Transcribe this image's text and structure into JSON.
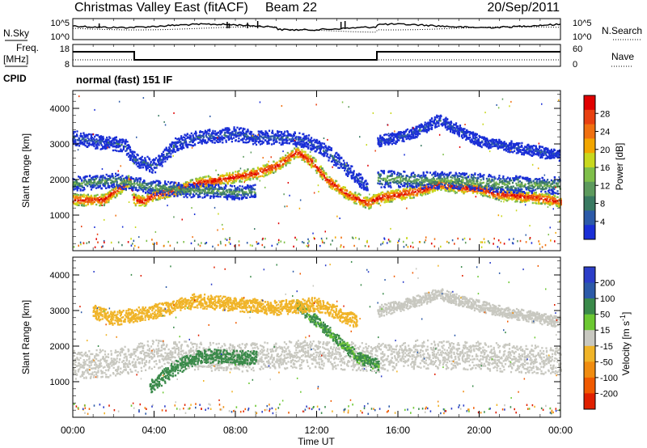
{
  "header": {
    "title": "Christmas Valley East (fitACF)",
    "beam": "Beam 22",
    "date": "20/Sep/2011"
  },
  "noise_panel": {
    "left_label": "N.Sky",
    "right_label": "N.Search",
    "left_ticks": [
      "10^5",
      "10^0"
    ],
    "right_ticks": [
      "10^5",
      "10^0"
    ]
  },
  "freq_panel": {
    "left_label_1": "Freq.",
    "left_label_2": "[MHz]",
    "right_label": "Nave",
    "left_ticks": [
      "18",
      "8"
    ],
    "right_ticks": [
      "60",
      "0"
    ]
  },
  "cpid": {
    "label": "CPID",
    "text": "normal (fast) 151 IF"
  },
  "colors": {
    "power": [
      "#1a2fd6",
      "#2c5aa8",
      "#3a7a62",
      "#5d9a5d",
      "#7fbf4a",
      "#c8d81e",
      "#f2a600",
      "#f07010",
      "#e84010",
      "#e00000"
    ],
    "velocity": [
      "#2c3ec8",
      "#2c5aa8",
      "#3a8a4a",
      "#6cc832",
      "#c8c8c0",
      "#f0b428",
      "#f08c10",
      "#f05a00",
      "#e02000"
    ]
  },
  "chart_data": [
    {
      "type": "heatmap",
      "name": "power",
      "ylabel": "Slant Range [km]",
      "yticks": [
        1000,
        2000,
        3000,
        4000
      ],
      "ylim": [
        0,
        4500
      ],
      "xlim": [
        0,
        24
      ],
      "colorbar": {
        "label": "Power [dB]",
        "ticks": [
          "4",
          "8",
          "12",
          "16",
          "20",
          "24",
          "28"
        ],
        "range": [
          0,
          30
        ]
      },
      "bands": [
        {
          "level": 29,
          "width": 200,
          "path": [
            [
              0,
              1450
            ],
            [
              1.5,
              1450
            ],
            [
              2.8,
              2000
            ],
            [
              3.0,
              1450
            ],
            [
              3.5,
              1400
            ],
            [
              4,
              1600
            ],
            [
              5,
              1700
            ],
            [
              6,
              1900
            ],
            [
              7,
              2000
            ],
            [
              8,
              2100
            ],
            [
              9,
              2200
            ],
            [
              10,
              2400
            ],
            [
              11,
              2800
            ],
            [
              11.8,
              2500
            ],
            [
              12.5,
              2000
            ],
            [
              13.5,
              1600
            ],
            [
              14.5,
              1350
            ],
            [
              15,
              1500
            ],
            [
              16,
              1600
            ],
            [
              17,
              1700
            ],
            [
              18,
              1900
            ],
            [
              19,
              1800
            ],
            [
              20,
              1750
            ],
            [
              21,
              1600
            ],
            [
              22,
              1550
            ],
            [
              23,
              1500
            ],
            [
              24,
              1400
            ]
          ]
        },
        {
          "level": 12,
          "width": 250,
          "path": [
            [
              0,
              1900
            ],
            [
              2,
              2000
            ],
            [
              4,
              1800
            ],
            [
              6,
              1700
            ],
            [
              7,
              1700
            ],
            [
              8,
              1650
            ],
            [
              9,
              1700
            ]
          ]
        },
        {
          "level": 13,
          "width": 300,
          "path": [
            [
              15,
              2050
            ],
            [
              17,
              2000
            ],
            [
              19,
              2000
            ],
            [
              21,
              1900
            ],
            [
              24,
              1850
            ]
          ]
        },
        {
          "level": 6,
          "width": 250,
          "path": [
            [
              0,
              3200
            ],
            [
              1,
              3100
            ],
            [
              2.5,
              3000
            ],
            [
              3,
              2600
            ],
            [
              4,
              2400
            ],
            [
              5,
              3000
            ],
            [
              6,
              3200
            ],
            [
              8,
              3300
            ],
            [
              9,
              3200
            ],
            [
              10.5,
              3200
            ],
            [
              11.5,
              3100
            ],
            [
              12.5,
              2800
            ],
            [
              13.5,
              2300
            ],
            [
              14.5,
              1800
            ]
          ]
        },
        {
          "level": 5,
          "width": 200,
          "path": [
            [
              15,
              3100
            ],
            [
              16,
              3200
            ],
            [
              17,
              3400
            ],
            [
              18,
              3700
            ],
            [
              19,
              3400
            ],
            [
              20,
              3100
            ],
            [
              21,
              3000
            ],
            [
              22,
              2900
            ],
            [
              23,
              2800
            ],
            [
              24,
              2700
            ]
          ]
        }
      ],
      "scatter_rows": [
        200,
        320
      ]
    },
    {
      "type": "heatmap",
      "name": "velocity",
      "ylabel": "Slant Range [km]",
      "yticks": [
        1000,
        2000,
        3000,
        4000
      ],
      "ylim": [
        0,
        4500
      ],
      "xlim": [
        0,
        24
      ],
      "xlabel": "Time UT",
      "xticks": [
        "00:00",
        "04:00",
        "08:00",
        "12:00",
        "16:00",
        "20:00",
        "00:00"
      ],
      "colorbar": {
        "label": "Velocity [m s^-1]",
        "ticks": [
          "200",
          "100",
          "50",
          "15",
          "-15",
          "-50",
          "-100",
          "-200"
        ],
        "range": [
          -250,
          250
        ]
      },
      "bands": [
        {
          "level": 0,
          "width": 500,
          "path": [
            [
              0,
              1500
            ],
            [
              2,
              1550
            ],
            [
              4,
              1800
            ],
            [
              8,
              1700
            ],
            [
              12,
              1800
            ],
            [
              15,
              1700
            ],
            [
              17,
              1800
            ],
            [
              20,
              1750
            ],
            [
              24,
              1600
            ]
          ]
        },
        {
          "level": 60,
          "width": 250,
          "path": [
            [
              3.8,
              900
            ],
            [
              5,
              1400
            ],
            [
              6,
              1700
            ],
            [
              7,
              1750
            ],
            [
              8,
              1700
            ],
            [
              9,
              1700
            ]
          ]
        },
        {
          "level": 55,
          "width": 200,
          "path": [
            [
              11,
              3200
            ],
            [
              12,
              2700
            ],
            [
              13,
              2200
            ],
            [
              14,
              1700
            ],
            [
              15,
              1500
            ]
          ]
        },
        {
          "level": -30,
          "width": 250,
          "path": [
            [
              1,
              3000
            ],
            [
              2,
              2800
            ],
            [
              4,
              3000
            ],
            [
              6,
              3300
            ],
            [
              8,
              3200
            ],
            [
              10,
              3100
            ],
            [
              12,
              3200
            ],
            [
              14,
              2700
            ]
          ]
        },
        {
          "level": 0,
          "width": 200,
          "path": [
            [
              15,
              3000
            ],
            [
              17,
              3300
            ],
            [
              18,
              3500
            ],
            [
              19,
              3300
            ],
            [
              21,
              3000
            ],
            [
              24,
              2700
            ]
          ]
        }
      ],
      "scatter_rows": [
        200,
        320
      ]
    }
  ]
}
